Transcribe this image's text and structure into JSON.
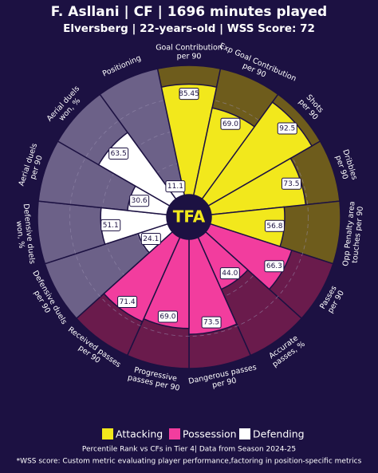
{
  "chart_data": {
    "type": "pizza",
    "title": "F. Asllani | CF | 1696 minutes played",
    "subtitle": "Elversberg | 22-years-old | WSS Score: 72",
    "logo": "TFA",
    "categories": [
      "Goal Contribution\nper 90",
      "Exp Goal Contribution\nper 90",
      "Shots\nper 90",
      "Dribbles\nper 90",
      "Opp Penalty area\ntouches per 90",
      "Passes\nper 90",
      "Accurate\npasses, %",
      "Dangerous passes\nper 90",
      "Progressive\npasses per 90",
      "Received passes\nper 90",
      "Defensive duels\nper 90",
      "Defensive duels\nwon, %",
      "Aerial duels\nper 90",
      "Aerial duels\nwon, %",
      "Positioning"
    ],
    "ylim": [
      0,
      100
    ],
    "series": [
      {
        "name": "Attacking",
        "color": "#f2e81c",
        "background_color": "#6e5c1c",
        "values": [
          85.45,
          69.0,
          92.5,
          73.5,
          56.8,
          null,
          null,
          null,
          null,
          null,
          null,
          null,
          null,
          null,
          null
        ],
        "value_labels": [
          "85.45",
          "69.0",
          "92.5",
          "73.5",
          "56.8",
          null,
          null,
          null,
          null,
          null,
          null,
          null,
          null,
          null,
          null
        ]
      },
      {
        "name": "Possession",
        "color": "#f23d9e",
        "background_color": "#6a1b4c",
        "values": [
          null,
          null,
          null,
          null,
          null,
          66.3,
          44.0,
          73.5,
          69.0,
          71.4,
          null,
          null,
          null,
          null,
          null
        ],
        "value_labels": [
          null,
          null,
          null,
          null,
          null,
          "66.3",
          "44.0",
          "73.5",
          "69.0",
          "71.4",
          null,
          null,
          null,
          null,
          null
        ]
      },
      {
        "name": "Defending",
        "color": "#ffffff",
        "background_color": "#6c6188",
        "values": [
          null,
          null,
          null,
          null,
          null,
          null,
          null,
          null,
          null,
          null,
          24.1,
          51.1,
          30.6,
          63.5,
          11.1
        ],
        "value_labels": [
          null,
          null,
          null,
          null,
          null,
          null,
          null,
          null,
          null,
          null,
          "24.1",
          "51.1",
          "30.6",
          "63.5",
          "11.1"
        ]
      }
    ],
    "footnote": "Percentile Rank vs CFs in Tier 4| Data from Season 2024-25",
    "footnote2": "*WSS score: Custom metric evaluating player performance,factoring in position-specific metrics"
  }
}
